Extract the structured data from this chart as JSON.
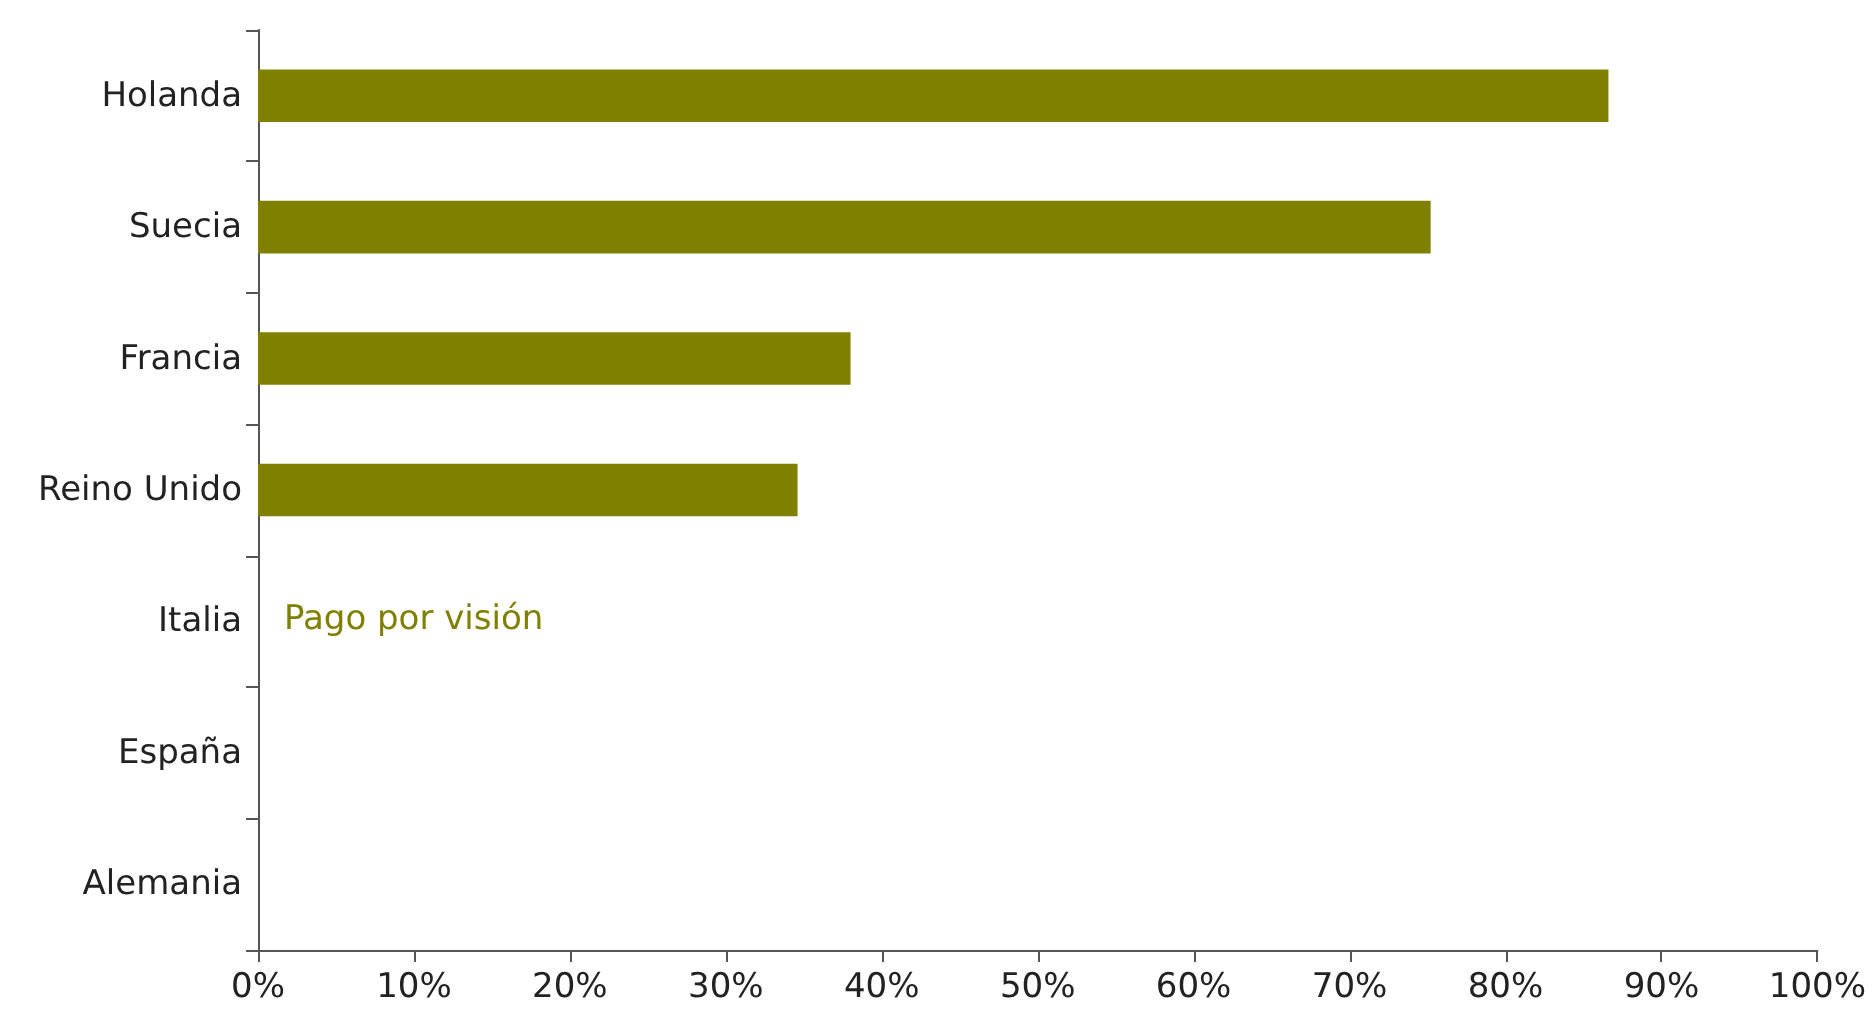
{
  "chart_data": {
    "type": "bar",
    "orientation": "horizontal",
    "categories": [
      "Holanda",
      "Suecia",
      "Francia",
      "Reino Unido",
      "Italia",
      "España",
      "Alemania"
    ],
    "series": [
      {
        "name": "Pago por visión",
        "color": "#808000",
        "values": [
          86.6,
          75.2,
          38.0,
          34.6,
          null,
          null,
          null
        ]
      }
    ],
    "xlim": [
      0,
      100
    ],
    "xticks": [
      {
        "value": 0,
        "label": "0%"
      },
      {
        "value": 10,
        "label": "10%"
      },
      {
        "value": 20,
        "label": "20%"
      },
      {
        "value": 30,
        "label": "30%"
      },
      {
        "value": 40,
        "label": "40%"
      },
      {
        "value": 50,
        "label": "50%"
      },
      {
        "value": 60,
        "label": "60%"
      },
      {
        "value": 70,
        "label": "70%"
      },
      {
        "value": 80,
        "label": "80%"
      },
      {
        "value": 90,
        "label": "90%"
      },
      {
        "value": 100,
        "label": "100%"
      }
    ],
    "grid": false,
    "legend": "left"
  }
}
